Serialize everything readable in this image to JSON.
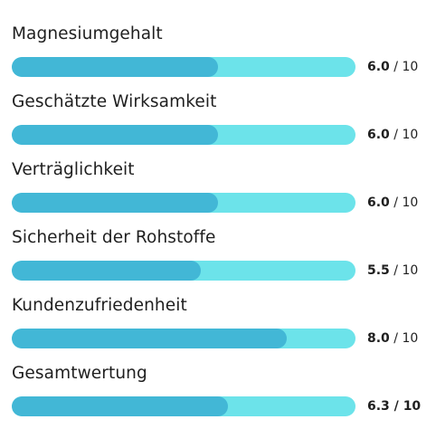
{
  "colors": {
    "track": "#6ce3ea",
    "fill": "#42b7d6",
    "text": "#1f1f1f"
  },
  "ratings": [
    {
      "label": "Magnesiumgehalt",
      "value": "6.0",
      "max": "10",
      "fraction": 0.6
    },
    {
      "label": "Geschätzte Wirksamkeit",
      "value": "6.0",
      "max": "10",
      "fraction": 0.6
    },
    {
      "label": "Verträglichkeit",
      "value": "6.0",
      "max": "10",
      "fraction": 0.6
    },
    {
      "label": "Sicherheit der Rohstoffe",
      "value": "5.5",
      "max": "10",
      "fraction": 0.55
    },
    {
      "label": "Kundenzufriedenheit",
      "value": "8.0",
      "max": "10",
      "fraction": 0.8
    },
    {
      "label": "Gesamtwertung",
      "value": "6.3",
      "max": "10",
      "fraction": 0.63
    }
  ]
}
